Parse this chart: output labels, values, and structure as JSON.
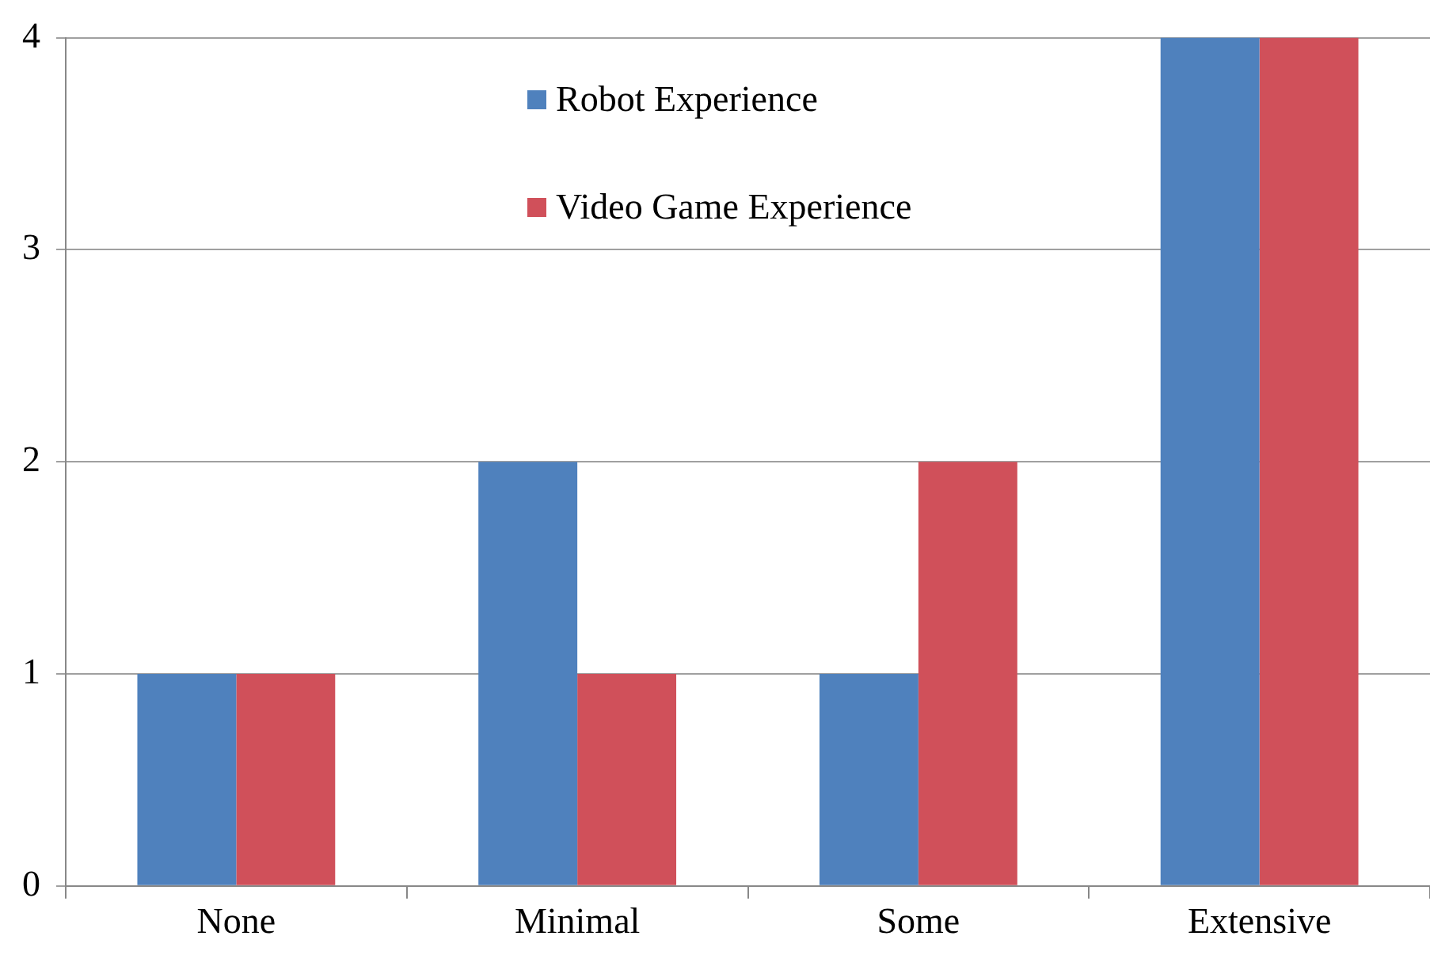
{
  "chart_data": {
    "type": "bar",
    "categories": [
      "None",
      "Minimal",
      "Some",
      "Extensive"
    ],
    "series": [
      {
        "name": "Robot Experience",
        "color": "#4f81bd",
        "values": [
          1,
          2,
          1,
          4
        ]
      },
      {
        "name": "Video Game Experience",
        "color": "#d0505a",
        "values": [
          1,
          1,
          2,
          4
        ]
      }
    ],
    "ylim": [
      0,
      4
    ],
    "yticks": [
      0,
      1,
      2,
      3,
      4
    ],
    "grid": "y",
    "legend": "top"
  }
}
